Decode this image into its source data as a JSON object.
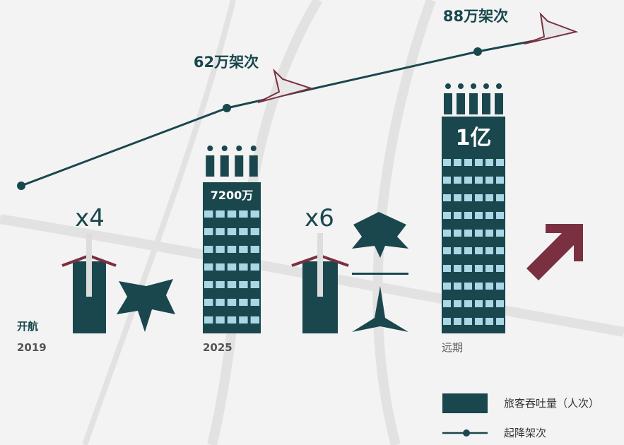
{
  "flights": [
    "62万架次",
    "88万架次"
  ],
  "passengers": [
    "7200万",
    "1亿"
  ],
  "multipliers": [
    "x4",
    "x6"
  ],
  "timeline": {
    "opening": "开航",
    "years": [
      "2019",
      "2025",
      "远期"
    ]
  },
  "legend": [
    "旅客吞吐量（人次）",
    "起降架次"
  ]
}
